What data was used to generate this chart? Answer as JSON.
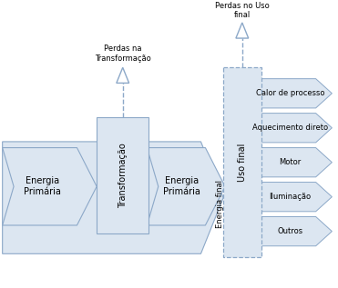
{
  "bg_color": "#ffffff",
  "box_fill": "#dce6f1",
  "box_edge": "#8ca8c8",
  "arrow_fill": "#dce6f1",
  "arrow_edge": "#8ca8c8",
  "dashed_color": "#8ca8c8",
  "labels": {
    "energia_primaria": "Energia\nPrimária",
    "transformacao": "Transformação",
    "energia_secundaria": "Energia\nPrimária",
    "uso_final": "Uso final",
    "energia_final": "Energia final",
    "perdas_transf": "Perdas na\nTransformação",
    "perdas_uso": "Perdas no Uso\nfinal",
    "outputs": [
      "Calor de processo",
      "Aquecimento direto",
      "Motor",
      "Iluminação",
      "Outros"
    ]
  },
  "font_size": 7,
  "small_font_size": 6
}
